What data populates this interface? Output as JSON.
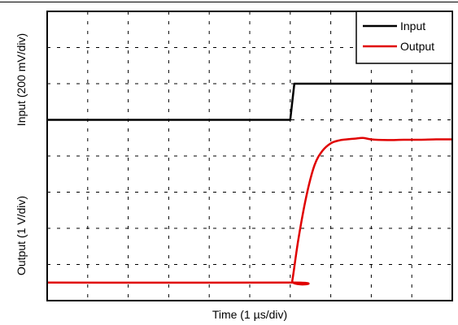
{
  "chart_data": {
    "type": "line",
    "title": "",
    "xlabel": "Time (1 µs/div)",
    "ylabel_upper": "Input (200 mV/div)",
    "ylabel_lower": "Output (1 V/div)",
    "x_divisions": 10,
    "y_divisions": 8,
    "xlim": [
      0,
      10
    ],
    "ylim": [
      0,
      8
    ],
    "grid": true,
    "grid_style": "dashed",
    "legend_position": "top-right",
    "series": [
      {
        "name": "Input",
        "color": "#000000",
        "x": [
          0,
          6.0,
          6.1,
          10
        ],
        "y": [
          5.0,
          5.0,
          6.0,
          6.0
        ]
      },
      {
        "name": "Output",
        "color": "#e00000",
        "x": [
          0,
          6.0,
          6.05,
          6.2,
          6.4,
          6.6,
          6.8,
          7.0,
          7.2,
          7.4,
          7.6,
          7.8,
          8.0,
          8.4,
          8.8,
          9.2,
          9.6,
          10
        ],
        "y": [
          0.5,
          0.5,
          0.55,
          1.7,
          2.9,
          3.75,
          4.15,
          4.35,
          4.43,
          4.46,
          4.48,
          4.5,
          4.46,
          4.44,
          4.45,
          4.45,
          4.46,
          4.46
        ]
      }
    ]
  }
}
